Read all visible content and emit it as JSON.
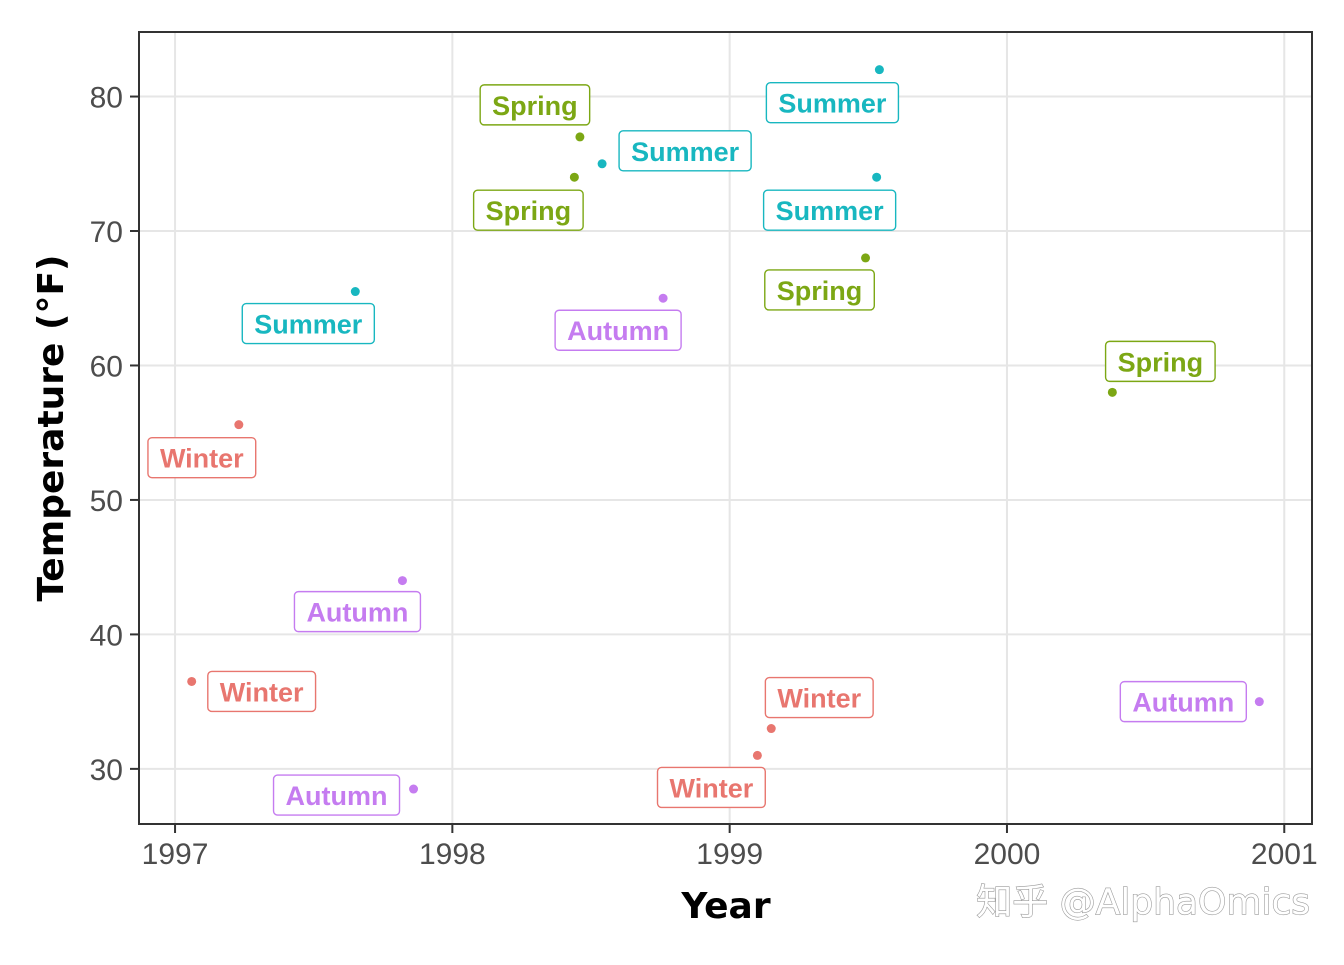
{
  "watermark": "知乎 @AlphaOmics",
  "colors": {
    "Winter": "#e8766f",
    "Spring": "#7ca714",
    "Summer": "#18b7c0",
    "Autumn": "#c57cf0",
    "grid": "#e6e6e6",
    "panel_border": "#333333",
    "tick_text": "#4d4d4d"
  },
  "chart_data": {
    "type": "scatter",
    "title": "",
    "xlabel": "Year",
    "ylabel": "Temperature (°F)",
    "xlim": [
      1996.87,
      2001.1
    ],
    "ylim": [
      25.9,
      84.8
    ],
    "xticks": [
      1997,
      1998,
      1999,
      2000,
      2001
    ],
    "yticks": [
      30,
      40,
      50,
      60,
      70,
      80
    ],
    "grid": true,
    "legend": "none",
    "points": [
      {
        "x": 1997.06,
        "y": 36.5,
        "label": "Winter",
        "season": "Winter"
      },
      {
        "x": 1997.23,
        "y": 55.6,
        "label": "Winter",
        "season": "Winter"
      },
      {
        "x": 1997.65,
        "y": 65.5,
        "label": "Summer",
        "season": "Summer"
      },
      {
        "x": 1997.82,
        "y": 44.0,
        "label": "Autumn",
        "season": "Autumn"
      },
      {
        "x": 1997.86,
        "y": 28.5,
        "label": "Autumn",
        "season": "Autumn"
      },
      {
        "x": 1998.44,
        "y": 74.0,
        "label": "Spring",
        "season": "Spring"
      },
      {
        "x": 1998.46,
        "y": 77.0,
        "label": "Spring",
        "season": "Spring"
      },
      {
        "x": 1998.54,
        "y": 75.0,
        "label": "Summer",
        "season": "Summer"
      },
      {
        "x": 1998.76,
        "y": 65.0,
        "label": "Autumn",
        "season": "Autumn"
      },
      {
        "x": 1999.1,
        "y": 31.0,
        "label": "Winter",
        "season": "Winter"
      },
      {
        "x": 1999.15,
        "y": 33.0,
        "label": "Winter",
        "season": "Winter"
      },
      {
        "x": 1999.49,
        "y": 68.0,
        "label": "Spring",
        "season": "Spring"
      },
      {
        "x": 1999.53,
        "y": 74.0,
        "label": "Summer",
        "season": "Summer"
      },
      {
        "x": 1999.54,
        "y": 82.0,
        "label": "Summer",
        "season": "Summer"
      },
      {
        "x": 2000.38,
        "y": 58.0,
        "label": "Spring",
        "season": "Spring"
      },
      {
        "x": 2000.91,
        "y": 35.0,
        "label": "Autumn",
        "season": "Autumn"
      }
    ]
  }
}
